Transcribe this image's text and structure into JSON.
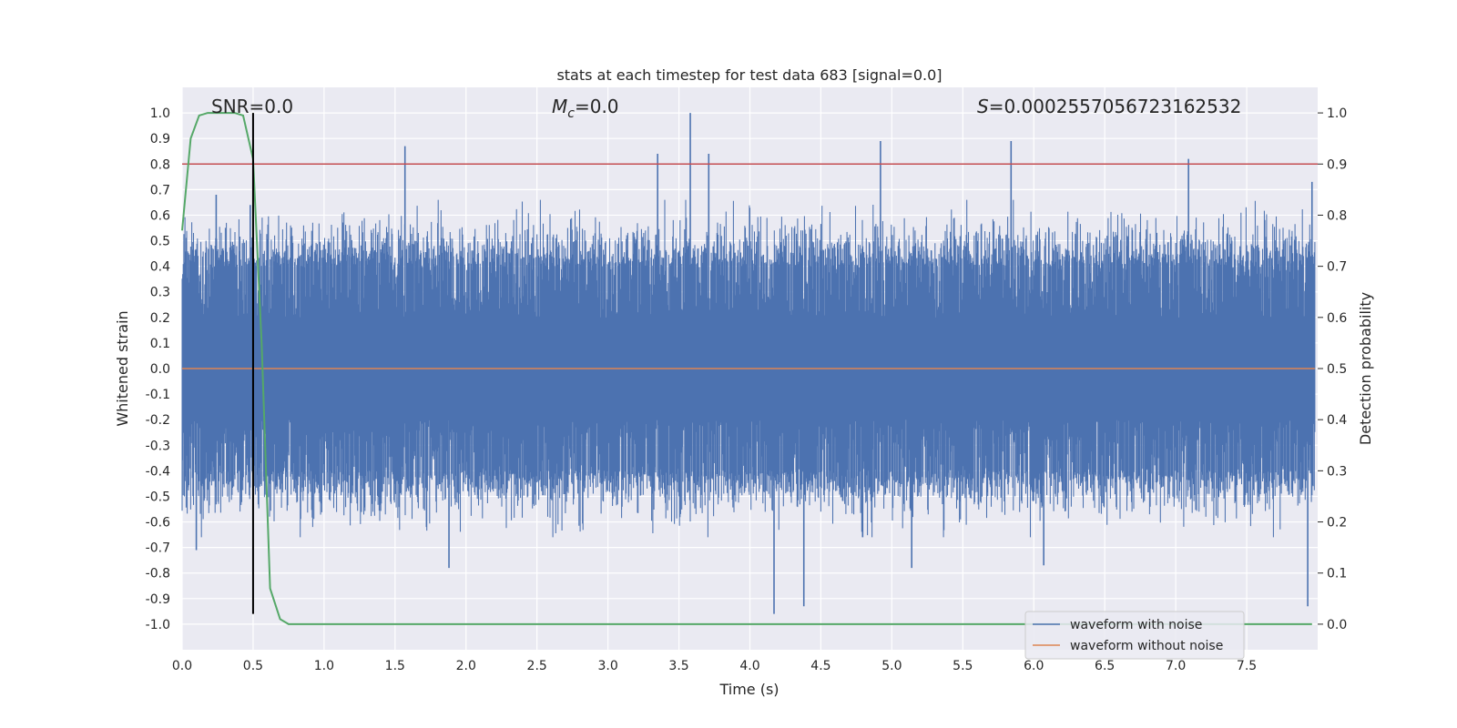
{
  "chart_data": {
    "type": "line",
    "title": "stats at each timestep for test data 683 [signal=0.0]",
    "xlabel": "Time (s)",
    "ylabel": "Whitened strain",
    "y2label": "Detection probability",
    "xlim": [
      0.0,
      8.0
    ],
    "ylim": [
      -1.1,
      1.1
    ],
    "y2lim": [
      -0.05,
      1.05
    ],
    "xticks": [
      "0.0",
      "0.5",
      "1.0",
      "1.5",
      "2.0",
      "2.5",
      "3.0",
      "3.5",
      "4.0",
      "4.5",
      "5.0",
      "5.5",
      "6.0",
      "6.5",
      "7.0",
      "7.5"
    ],
    "xtick_values": [
      0.0,
      0.5,
      1.0,
      1.5,
      2.0,
      2.5,
      3.0,
      3.5,
      4.0,
      4.5,
      5.0,
      5.5,
      6.0,
      6.5,
      7.0,
      7.5
    ],
    "yticks": [
      "1.0",
      "0.9",
      "0.8",
      "0.7",
      "0.6",
      "0.5",
      "0.4",
      "0.3",
      "0.2",
      "0.1",
      "0.0",
      "-0.1",
      "-0.2",
      "-0.3",
      "-0.4",
      "-0.5",
      "-0.6",
      "-0.7",
      "-0.8",
      "-0.9",
      "-1.0"
    ],
    "ytick_values": [
      1.0,
      0.9,
      0.8,
      0.7,
      0.6,
      0.5,
      0.4,
      0.3,
      0.2,
      0.1,
      0.0,
      -0.1,
      -0.2,
      -0.3,
      -0.4,
      -0.5,
      -0.6,
      -0.7,
      -0.8,
      -0.9,
      -1.0
    ],
    "y2ticks": [
      "1.0",
      "0.9",
      "0.8",
      "0.7",
      "0.6",
      "0.5",
      "0.4",
      "0.3",
      "0.2",
      "0.1",
      "0.0"
    ],
    "y2tick_values": [
      1.0,
      0.9,
      0.8,
      0.7,
      0.6,
      0.5,
      0.4,
      0.3,
      0.2,
      0.1,
      0.0
    ],
    "annotations": {
      "snr": "SNR=0.0",
      "mc_symbol": "M",
      "mc_sub": "c",
      "mc_value": "=0.0",
      "s_symbol": "S",
      "s_value": "=0.0002557056723162532"
    },
    "series": [
      {
        "name": "waveform with noise",
        "color": "#4c72b0",
        "kind": "noise",
        "typical_amplitude": 0.4,
        "peaks": [
          {
            "x": 0.24,
            "y": 0.68
          },
          {
            "x": 0.48,
            "y": 0.64
          },
          {
            "x": 1.57,
            "y": 0.87
          },
          {
            "x": 3.35,
            "y": 0.84
          },
          {
            "x": 3.58,
            "y": 1.0
          },
          {
            "x": 3.71,
            "y": 0.84
          },
          {
            "x": 4.92,
            "y": 0.89
          },
          {
            "x": 5.84,
            "y": 0.89
          },
          {
            "x": 7.09,
            "y": 0.82
          },
          {
            "x": 7.96,
            "y": 0.73
          },
          {
            "x": 0.1,
            "y": -0.71
          },
          {
            "x": 1.88,
            "y": -0.78
          },
          {
            "x": 4.17,
            "y": -0.96
          },
          {
            "x": 4.38,
            "y": -0.93
          },
          {
            "x": 5.14,
            "y": -0.78
          },
          {
            "x": 6.07,
            "y": -0.77
          },
          {
            "x": 7.93,
            "y": -0.93
          }
        ]
      },
      {
        "name": "waveform without noise",
        "color": "#dd8452",
        "x": [
          0.0,
          7.98
        ],
        "y": [
          0.0,
          0.0
        ]
      },
      {
        "name": "detection probability",
        "color": "#55a868",
        "axis": "right",
        "x": [
          0.0,
          0.06,
          0.12,
          0.18,
          0.25,
          0.31,
          0.37,
          0.43,
          0.5,
          0.56,
          0.62,
          0.69,
          0.75,
          0.81,
          1.0,
          2.0,
          3.0,
          4.0,
          5.0,
          6.0,
          7.0,
          7.96
        ],
        "y": [
          0.77,
          0.95,
          0.995,
          1.0,
          1.0,
          1.0,
          1.0,
          0.995,
          0.91,
          0.55,
          0.07,
          0.01,
          0.0,
          0.0,
          0.0,
          0.0,
          0.0,
          0.0,
          0.0,
          0.0,
          0.0,
          0.0
        ]
      }
    ],
    "threshold": {
      "value": 0.9,
      "axis": "right",
      "color": "#c44e52"
    },
    "vline": {
      "x": 0.5,
      "color": "#000000"
    },
    "legend": {
      "location": "lower-right",
      "entries": [
        "waveform with noise",
        "waveform without noise"
      ]
    }
  }
}
